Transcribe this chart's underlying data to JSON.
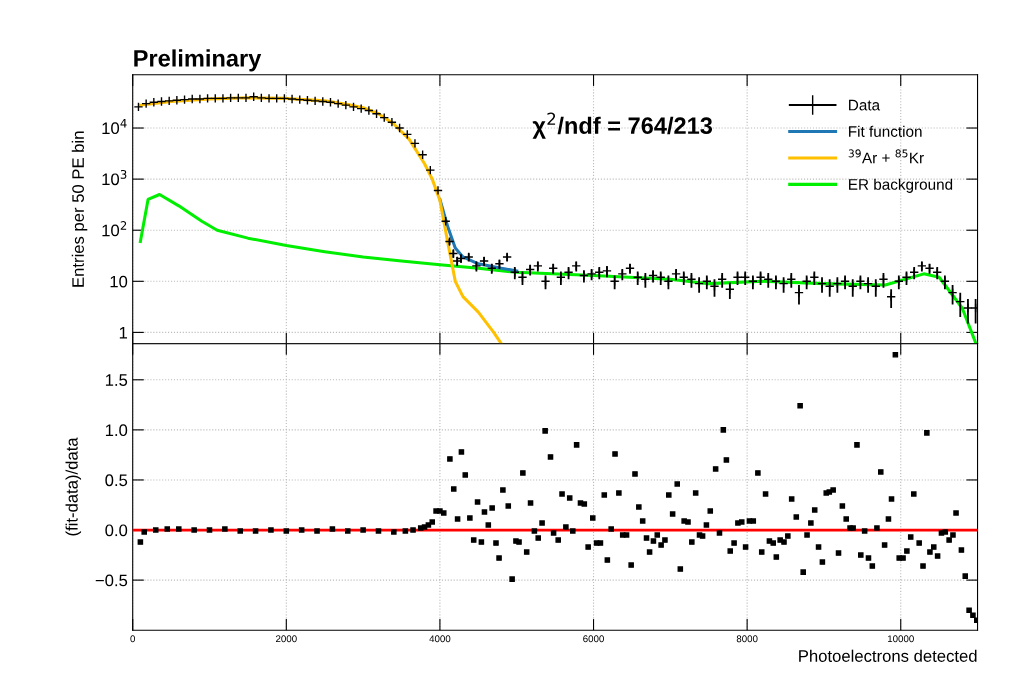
{
  "chart_data": [
    {
      "type": "line",
      "title": "Preliminary",
      "ylabel": "Entries per 50 PE bin",
      "xlim": [
        0,
        11000
      ],
      "ylim": [
        0.6,
        110000
      ],
      "xticks": [
        0,
        2000,
        4000,
        6000,
        8000,
        10000
      ],
      "yticks": [
        {
          "value": 1,
          "label": "1"
        },
        {
          "value": 10,
          "label": "10"
        },
        {
          "value": 100,
          "label": "10$^{2}$"
        },
        {
          "value": 1000,
          "label": "10$^{3}$"
        },
        {
          "value": 10000,
          "label": "10$^{4}$"
        }
      ],
      "log": "y",
      "grid": true,
      "legend": "top right",
      "tick_labels": "y",
      "annotations": [
        "χ$^{2}$/ndf = 764/213"
      ],
      "series": [
        {
          "name": "Data",
          "type": "scatter",
          "marker": "cross",
          "color": "#000000",
          "x": [
            75,
            175,
            275,
            375,
            475,
            575,
            675,
            775,
            875,
            975,
            1075,
            1175,
            1275,
            1375,
            1475,
            1575,
            1675,
            1775,
            1875,
            1975,
            2075,
            2175,
            2275,
            2375,
            2475,
            2575,
            2675,
            2775,
            2875,
            2975,
            3075,
            3175,
            3275,
            3375,
            3475,
            3575,
            3675,
            3775,
            3875,
            3975,
            4075,
            4125,
            4175,
            4225,
            4275,
            4375,
            4475,
            4575,
            4675,
            4775,
            4875,
            4975,
            5075,
            5175,
            5275,
            5375,
            5475,
            5575,
            5675,
            5775,
            5875,
            5975,
            6075,
            6175,
            6275,
            6375,
            6475,
            6575,
            6675,
            6775,
            6875,
            6975,
            7075,
            7175,
            7275,
            7375,
            7475,
            7575,
            7675,
            7775,
            7875,
            7975,
            8075,
            8175,
            8275,
            8375,
            8475,
            8575,
            8675,
            8775,
            8875,
            8975,
            9075,
            9175,
            9275,
            9375,
            9475,
            9575,
            9675,
            9775,
            9875,
            9975,
            10075,
            10175,
            10275,
            10375,
            10475,
            10575,
            10675,
            10775,
            10875,
            10975
          ],
          "values": [
            26000,
            30000,
            32000,
            33000,
            34000,
            35000,
            36000,
            37000,
            37000,
            38000,
            38000,
            38000,
            39000,
            39000,
            39000,
            41000,
            39000,
            38000,
            38000,
            38000,
            37000,
            36000,
            35000,
            34000,
            33000,
            32000,
            30000,
            28000,
            26000,
            24000,
            22000,
            19000,
            16000,
            13000,
            10000,
            7500,
            5000,
            3000,
            1500,
            600,
            150,
            60,
            35,
            25,
            28,
            30,
            20,
            25,
            18,
            22,
            30,
            15,
            12,
            17,
            20,
            10,
            18,
            12,
            15,
            20,
            13,
            14,
            15,
            16,
            10,
            14,
            18,
            12,
            11,
            13,
            12,
            10,
            14,
            12,
            11,
            9,
            10,
            8,
            11,
            7,
            12,
            12,
            10,
            12,
            11,
            10,
            9,
            11,
            6,
            10,
            12,
            9,
            8,
            9,
            10,
            8,
            10,
            9,
            8,
            11,
            5,
            10,
            12,
            15,
            20,
            18,
            15,
            10,
            6,
            4,
            3,
            3
          ],
          "errors": [
            null,
            null,
            null,
            null,
            null,
            null,
            null,
            null,
            null,
            null,
            null,
            null,
            null,
            null,
            null,
            null,
            null,
            null,
            null,
            null,
            null,
            null,
            null,
            null,
            null,
            null,
            null,
            null,
            null,
            null,
            null,
            null,
            null,
            null,
            null,
            null,
            null,
            null,
            null,
            null,
            12,
            8,
            6,
            5,
            5,
            5.5,
            4.5,
            5,
            4,
            4.5,
            5.5,
            4,
            3.5,
            4,
            4.5,
            3,
            4,
            3.5,
            4,
            4.5,
            3.5,
            3.5,
            4,
            4,
            3,
            3.5,
            4,
            3.5,
            3.5,
            3.5,
            3.5,
            3,
            3.5,
            3.5,
            3.5,
            3,
            3,
            3,
            3.5,
            2.5,
            3.5,
            3.5,
            3,
            3.5,
            3.5,
            3,
            3,
            3.5,
            2.5,
            3,
            3.5,
            3,
            3,
            3,
            3,
            3,
            3,
            3,
            3,
            3.5,
            2,
            3,
            3.5,
            4,
            4.5,
            4,
            4,
            3,
            2.5,
            2,
            1.5,
            1.5
          ]
        },
        {
          "name": "Fit function",
          "color": "#1f77b4",
          "x": [
            4000,
            4100,
            4200,
            4300,
            4500,
            4800,
            5000
          ],
          "values": [
            400,
            120,
            45,
            30,
            22,
            18,
            16
          ]
        },
        {
          "name": "$^{39}$Ar + $^{85}$Kr",
          "color": "#ffc000",
          "x": [
            100,
            500,
            1000,
            1500,
            2000,
            2500,
            2800,
            3000,
            3200,
            3400,
            3600,
            3800,
            3900,
            4000,
            4100,
            4200,
            4300,
            4500,
            4700,
            4800
          ],
          "values": [
            28000,
            33000,
            37000,
            39000,
            38000,
            34000,
            29000,
            25000,
            19000,
            12000,
            6000,
            2000,
            1000,
            380,
            60,
            10,
            5,
            2.5,
            1,
            0.6
          ]
        },
        {
          "name": "ER background",
          "color": "#00ee00",
          "x": [
            100,
            200,
            350,
            600,
            900,
            1100,
            1500,
            2000,
            2500,
            3000,
            3500,
            4000,
            4500,
            5000,
            6000,
            7000,
            7500,
            8200,
            9000,
            9800,
            10300,
            10500,
            10800,
            10980
          ],
          "values": [
            60,
            400,
            500,
            300,
            150,
            100,
            70,
            50,
            38,
            30,
            25,
            21,
            18,
            15,
            13,
            11,
            9,
            10,
            9,
            8.5,
            14,
            12,
            3,
            0.6
          ]
        }
      ]
    },
    {
      "type": "scatter",
      "ylabel": "(fit-data)/data",
      "xlabel": "Photoelectrons detected",
      "xlim": [
        0,
        11000
      ],
      "ylim": [
        -1.0,
        1.86
      ],
      "xticks": [
        0,
        2000,
        4000,
        6000,
        8000,
        10000
      ],
      "yticks": [
        {
          "value": -0.5,
          "label": "−0.5"
        },
        {
          "value": 0,
          "label": "0.0"
        },
        {
          "value": 0.5,
          "label": "0.5"
        },
        {
          "value": 1,
          "label": "1.0"
        },
        {
          "value": 1.5,
          "label": "1.5"
        }
      ],
      "grid": true,
      "ref_lines": [
        {
          "axis": "y",
          "value": 0,
          "color": "#ff0000"
        }
      ],
      "series": [
        {
          "marker": "square",
          "color": "#000000",
          "x": [
            100,
            150,
            300,
            450,
            600,
            800,
            1000,
            1200,
            1400,
            1600,
            1800,
            2000,
            2200,
            2400,
            2600,
            2800,
            3000,
            3200,
            3400,
            3550,
            3650,
            3750,
            3800,
            3850,
            3900,
            3950,
            4000,
            4050,
            4130,
            4180,
            4230,
            4280,
            4330,
            4390,
            4440,
            4490,
            4540,
            4580,
            4630,
            4680,
            4730,
            4770,
            4820,
            4890,
            4940,
            4990,
            5030,
            5080,
            5130,
            5180,
            5230,
            5280,
            5330,
            5370,
            5440,
            5480,
            5540,
            5590,
            5640,
            5690,
            5730,
            5780,
            5830,
            5880,
            5930,
            5990,
            6040,
            6090,
            6140,
            6180,
            6230,
            6280,
            6330,
            6380,
            6430,
            6490,
            6540,
            6590,
            6640,
            6690,
            6730,
            6780,
            6830,
            6880,
            6930,
            6980,
            7030,
            7090,
            7130,
            7180,
            7230,
            7280,
            7330,
            7380,
            7420,
            7470,
            7520,
            7590,
            7640,
            7690,
            7730,
            7780,
            7830,
            7880,
            7930,
            7980,
            8030,
            8080,
            8140,
            8190,
            8240,
            8290,
            8340,
            8380,
            8430,
            8480,
            8530,
            8580,
            8640,
            8690,
            8730,
            8780,
            8830,
            8880,
            8930,
            8980,
            9030,
            9070,
            9120,
            9190,
            9240,
            9290,
            9340,
            9380,
            9430,
            9480,
            9530,
            9580,
            9630,
            9690,
            9740,
            9790,
            9840,
            9880,
            9930,
            9980,
            10030,
            10080,
            10130,
            10170,
            10240,
            10290,
            10340,
            10380,
            10430,
            10480,
            10530,
            10580,
            10630,
            10680,
            10720,
            10790,
            10840,
            10890,
            10940,
            10990
          ],
          "values": [
            -0.12,
            -0.02,
            0.0,
            0.01,
            0.01,
            0.0,
            0.0,
            0.01,
            -0.01,
            -0.01,
            0.0,
            -0.01,
            0.0,
            -0.01,
            0.01,
            -0.01,
            0.0,
            -0.01,
            -0.02,
            -0.01,
            0.0,
            0.02,
            0.03,
            0.05,
            0.08,
            0.19,
            0.19,
            0.17,
            0.71,
            0.41,
            0.11,
            0.78,
            0.55,
            0.12,
            -0.1,
            0.28,
            -0.12,
            0.18,
            0.05,
            0.22,
            -0.13,
            -0.28,
            0.4,
            0.24,
            -0.49,
            -0.11,
            -0.12,
            0.57,
            -0.22,
            0.27,
            -0.01,
            -0.08,
            0.07,
            0.99,
            0.73,
            -0.03,
            -0.1,
            0.36,
            0.03,
            0.32,
            -0.01,
            0.85,
            0.27,
            0.26,
            -0.17,
            0.12,
            -0.13,
            -0.13,
            0.35,
            -0.3,
            0.01,
            0.76,
            0.37,
            -0.05,
            -0.05,
            -0.35,
            0.56,
            0.23,
            0.09,
            -0.08,
            -0.22,
            -0.11,
            -0.05,
            -0.15,
            -0.1,
            0.35,
            0.16,
            0.46,
            -0.39,
            0.09,
            0.08,
            -0.12,
            0.37,
            -0.05,
            -0.06,
            0.05,
            0.19,
            0.61,
            -0.03,
            1.0,
            0.7,
            -0.21,
            -0.13,
            0.07,
            0.08,
            -0.17,
            0.09,
            0.09,
            0.57,
            -0.22,
            0.36,
            -0.11,
            -0.13,
            -0.27,
            -0.1,
            -0.12,
            -0.06,
            0.31,
            0.13,
            1.24,
            -0.42,
            -0.05,
            0.07,
            0.2,
            -0.17,
            -0.32,
            0.37,
            0.38,
            0.4,
            -0.23,
            0.24,
            0.11,
            0.02,
            0.02,
            0.85,
            -0.25,
            -0.01,
            -0.28,
            -0.36,
            0.02,
            0.58,
            -0.15,
            0.11,
            0.31,
            1.75,
            -0.28,
            -0.28,
            -0.21,
            -0.07,
            0.36,
            -0.13,
            -0.36,
            0.97,
            -0.22,
            -0.17,
            -0.26,
            -0.03,
            -0.02,
            -0.1,
            -0.05,
            0.17,
            -0.2,
            -0.46,
            -0.8,
            -0.85,
            -0.9
          ]
        }
      ]
    }
  ]
}
